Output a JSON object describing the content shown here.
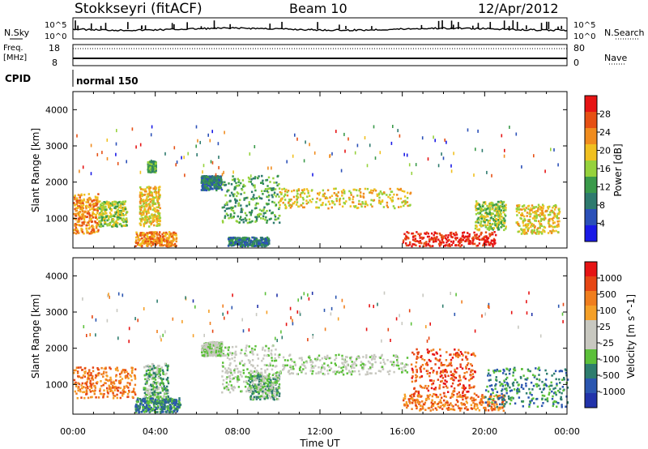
{
  "header": {
    "station": "Stokkseyri (fitACF)",
    "beam": "Beam 10",
    "date": "12/Apr/2012"
  },
  "aux_panels": {
    "nsky_label": "N.Sky",
    "nsearch_label": "N.Search",
    "noise_ticks": [
      "10^5",
      "10^0"
    ],
    "freq_label_line1": "Freq.",
    "freq_label_line2": "[MHz]",
    "freq_ticks": [
      "18",
      "8"
    ],
    "nave_label": "Nave",
    "nave_ticks": [
      "80",
      "0"
    ],
    "cpid_label": "CPID",
    "cpid_value": "normal 150"
  },
  "colors": {
    "power_scale": [
      "#1a1ae6",
      "#2b50b8",
      "#2e7a6e",
      "#3a9a4a",
      "#96d23c",
      "#f0c020",
      "#f08c1e",
      "#e65014",
      "#e61414"
    ],
    "velocity_scale": [
      "#2233aa",
      "#2b56b0",
      "#2e7d6e",
      "#5cc03a",
      "#c8c8c0",
      "#c8c8c0",
      "#f5a028",
      "#f07e1e",
      "#e64614",
      "#e61414"
    ]
  },
  "chart_data": [
    {
      "type": "heatmap",
      "title": "",
      "xlabel": "",
      "ylabel": "Slant Range [km]",
      "colorbar_label": "Power [dB]",
      "colorbar_ticks": [
        "28",
        "24",
        "20",
        "16",
        "12",
        "8",
        "4"
      ],
      "xlim": [
        0,
        24
      ],
      "ylim": [
        180,
        4500
      ],
      "ytick_labels": [
        "4000",
        "3000",
        "2000",
        "1000"
      ],
      "regions": [
        {
          "t": [
            0.0,
            1.2
          ],
          "r": [
            600,
            1700
          ],
          "level": 6
        },
        {
          "t": [
            1.2,
            2.6
          ],
          "r": [
            800,
            1500
          ],
          "level": 4
        },
        {
          "t": [
            3.2,
            4.2
          ],
          "r": [
            800,
            1900
          ],
          "level": 5
        },
        {
          "t": [
            3.0,
            5.0
          ],
          "r": [
            250,
            650
          ],
          "level": 6
        },
        {
          "t": [
            3.6,
            4.0
          ],
          "r": [
            2300,
            2600
          ],
          "level": 3
        },
        {
          "t": [
            6.2,
            7.2
          ],
          "r": [
            1800,
            2200
          ],
          "level": 2
        },
        {
          "t": [
            7.2,
            10.0
          ],
          "r": [
            900,
            2200
          ],
          "level": 3
        },
        {
          "t": [
            10.0,
            16.4
          ],
          "r": [
            1300,
            1850
          ],
          "level": 5
        },
        {
          "t": [
            16.0,
            20.5
          ],
          "r": [
            250,
            650
          ],
          "level": 8
        },
        {
          "t": [
            19.5,
            21.0
          ],
          "r": [
            700,
            1500
          ],
          "level": 4
        },
        {
          "t": [
            21.5,
            23.6
          ],
          "r": [
            600,
            1400
          ],
          "level": 5
        },
        {
          "t": [
            7.5,
            9.5
          ],
          "r": [
            250,
            500
          ],
          "level": 2
        }
      ]
    },
    {
      "type": "heatmap",
      "title": "",
      "xlabel": "Time UT",
      "ylabel": "Slant Range [km]",
      "colorbar_label": "Velocity [m s^-1]",
      "colorbar_ticks": [
        "1000",
        "500",
        "100",
        "25",
        "-25",
        "-100",
        "-500",
        "-1000"
      ],
      "xlim": [
        0,
        24
      ],
      "ylim": [
        180,
        4500
      ],
      "xtick_labels": [
        "00:00",
        "04:00",
        "08:00",
        "12:00",
        "16:00",
        "20:00",
        "00:00"
      ],
      "ytick_labels": [
        "4000",
        "3000",
        "2000",
        "1000"
      ],
      "regions": [
        {
          "t": [
            0.0,
            3.0
          ],
          "r": [
            650,
            1500
          ],
          "level": 7
        },
        {
          "t": [
            3.4,
            4.6
          ],
          "r": [
            500,
            1600
          ],
          "level": 3
        },
        {
          "t": [
            3.0,
            5.2
          ],
          "r": [
            250,
            650
          ],
          "level": 2
        },
        {
          "t": [
            6.2,
            7.2
          ],
          "r": [
            1800,
            2200
          ],
          "level": 4
        },
        {
          "t": [
            7.2,
            10.0
          ],
          "r": [
            800,
            2100
          ],
          "level": 4
        },
        {
          "t": [
            8.5,
            10.0
          ],
          "r": [
            600,
            1300
          ],
          "level": 3
        },
        {
          "t": [
            10.0,
            16.3
          ],
          "r": [
            1300,
            1850
          ],
          "level": 4
        },
        {
          "t": [
            16.0,
            21.0
          ],
          "r": [
            300,
            750
          ],
          "level": 7
        },
        {
          "t": [
            16.4,
            19.5
          ],
          "r": [
            700,
            2000
          ],
          "level": 8
        },
        {
          "t": [
            20.0,
            24.0
          ],
          "r": [
            400,
            1500
          ],
          "level": 2
        }
      ]
    }
  ]
}
